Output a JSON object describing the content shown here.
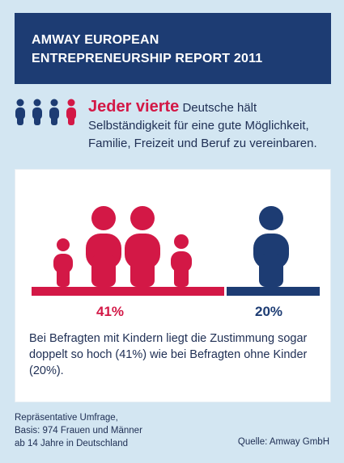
{
  "header": {
    "line1": "AMWAY EUROPEAN",
    "line2": "ENTREPRENEURSHIP REPORT 2011"
  },
  "lead": {
    "highlight": "Jeder vierte",
    "text_rest": " Deutsche hält Selbständigkeit für eine gute Möglichkeit, Familie, Freizeit und Beruf zu vereinbaren."
  },
  "comparison": {
    "with_children_percent": "41%",
    "without_children_percent": "20%",
    "with_children_value": 41,
    "without_children_value": 20
  },
  "description": "Bei Befragten mit Kindern liegt die Zustimmung sogar doppelt so hoch (41%) wie bei Befragten ohne Kinder (20%).",
  "source": {
    "line1": "Repräsentative Umfrage,",
    "line2": "Basis: 974 Frauen und Männer",
    "line3": "ab 14 Jahre in Deutschland"
  },
  "credit": "Quelle: Amway GmbH",
  "colors": {
    "red": "#d31846",
    "navy": "#1d3c73",
    "background": "#d3e6f2"
  }
}
